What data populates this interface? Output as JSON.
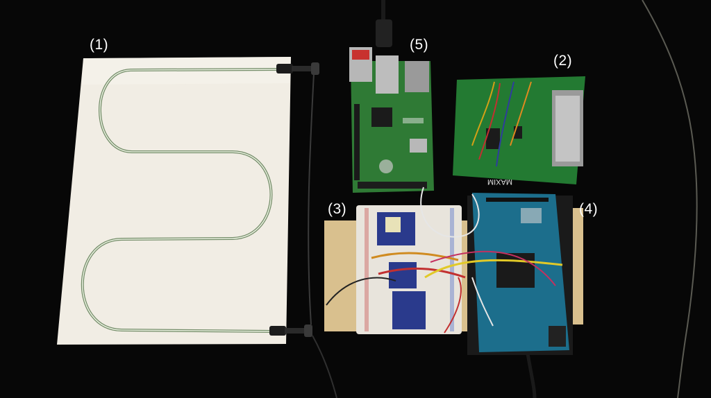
{
  "labels": {
    "l1": "(1)",
    "l2": "(2)",
    "l3": "(3)",
    "l4": "(4)",
    "l5": "(5)"
  },
  "board_text": {
    "maxim_logo": "MAXIM"
  },
  "colors": {
    "background": "#070707",
    "panel": "#f1ede4",
    "pcb_green": "#1f7a2b",
    "arduino_blue": "#1c6e8c",
    "breadboard": "#e8e4dc",
    "tape": "#d9c08e"
  }
}
